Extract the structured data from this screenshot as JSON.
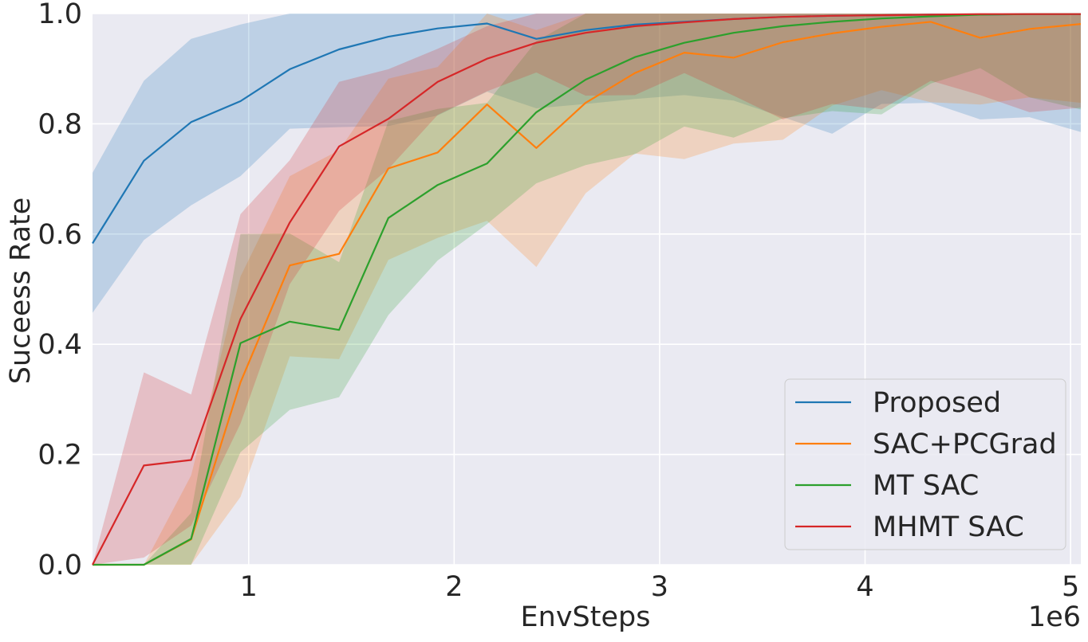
{
  "chart_data": {
    "type": "line",
    "title": "",
    "xlabel": "EnvSteps",
    "ylabel": "Suceess Rate",
    "x_offset_label": "1e6",
    "xlim": [
      0.24,
      5.05
    ],
    "ylim": [
      0.0,
      1.0
    ],
    "x_ticks": [
      1,
      2,
      3,
      4,
      5
    ],
    "y_ticks": [
      0.0,
      0.2,
      0.4,
      0.6,
      0.8,
      1.0
    ],
    "x_tick_labels": [
      "1",
      "2",
      "3",
      "4",
      "5"
    ],
    "y_tick_labels": [
      "0.0",
      "0.2",
      "0.4",
      "0.6",
      "0.8",
      "1.0"
    ],
    "grid": true,
    "legend_position": "bottom-right",
    "background_color": "#EAEAF2",
    "x": [
      0.24,
      0.49,
      0.72,
      0.96,
      1.2,
      1.44,
      1.68,
      1.92,
      2.16,
      2.4,
      2.64,
      2.88,
      3.12,
      3.36,
      3.6,
      3.84,
      4.08,
      4.32,
      4.56,
      4.8,
      5.05
    ],
    "series": [
      {
        "name": "Proposed",
        "color": "#1F77B4",
        "values": [
          0.583,
          0.733,
          0.803,
          0.841,
          0.899,
          0.935,
          0.958,
          0.973,
          0.982,
          0.954,
          0.97,
          0.98,
          0.985,
          0.99,
          0.994,
          0.996,
          0.997,
          0.998,
          0.998,
          0.999,
          0.999
        ],
        "lower": [
          0.457,
          0.589,
          0.652,
          0.705,
          0.791,
          0.794,
          0.796,
          0.815,
          0.858,
          0.828,
          0.836,
          0.845,
          0.852,
          0.842,
          0.812,
          0.782,
          0.836,
          0.838,
          0.808,
          0.812,
          0.785
        ],
        "upper": [
          0.711,
          0.878,
          0.954,
          0.98,
          1.0,
          1.0,
          1.0,
          1.0,
          1.0,
          1.0,
          1.0,
          1.0,
          1.0,
          1.0,
          1.0,
          1.0,
          1.0,
          1.0,
          1.0,
          1.0,
          1.0
        ]
      },
      {
        "name": "SAC+PCGrad",
        "color": "#FF7F0E",
        "values": [
          0.0,
          0.0,
          0.046,
          0.331,
          0.543,
          0.564,
          0.719,
          0.748,
          0.835,
          0.756,
          0.838,
          0.892,
          0.929,
          0.92,
          0.948,
          0.964,
          0.976,
          0.985,
          0.956,
          0.972,
          0.981
        ],
        "lower": [
          0.0,
          0.0,
          0.0,
          0.123,
          0.378,
          0.373,
          0.553,
          0.593,
          0.624,
          0.54,
          0.674,
          0.746,
          0.736,
          0.764,
          0.771,
          0.833,
          0.861,
          0.839,
          0.835,
          0.848,
          0.838
        ],
        "upper": [
          0.0,
          0.0,
          0.162,
          0.523,
          0.705,
          0.752,
          0.882,
          0.903,
          1.0,
          0.97,
          1.0,
          1.0,
          1.0,
          1.0,
          1.0,
          1.0,
          1.0,
          1.0,
          1.0,
          1.0,
          1.0
        ]
      },
      {
        "name": "MT SAC",
        "color": "#2CA02C",
        "values": [
          0.0,
          0.0,
          0.047,
          0.402,
          0.441,
          0.426,
          0.629,
          0.689,
          0.728,
          0.821,
          0.88,
          0.921,
          0.947,
          0.965,
          0.977,
          0.985,
          0.991,
          0.995,
          0.998,
          0.999,
          0.999
        ],
        "lower": [
          0.0,
          0.0,
          0.0,
          0.204,
          0.281,
          0.304,
          0.453,
          0.552,
          0.618,
          0.692,
          0.725,
          0.745,
          0.795,
          0.775,
          0.81,
          0.823,
          0.817,
          0.873,
          0.901,
          0.848,
          0.826
        ],
        "upper": [
          0.0,
          0.0,
          0.094,
          0.6,
          0.601,
          0.549,
          0.805,
          0.827,
          0.838,
          0.95,
          1.0,
          1.0,
          1.0,
          1.0,
          1.0,
          1.0,
          1.0,
          1.0,
          1.0,
          1.0,
          1.0
        ]
      },
      {
        "name": "MHMT SAC",
        "color": "#D62728",
        "values": [
          0.0,
          0.18,
          0.19,
          0.446,
          0.621,
          0.759,
          0.809,
          0.876,
          0.918,
          0.947,
          0.965,
          0.977,
          0.984,
          0.99,
          0.994,
          0.996,
          0.997,
          0.998,
          0.999,
          0.999,
          0.999
        ],
        "lower": [
          0.0,
          0.013,
          0.071,
          0.256,
          0.509,
          0.642,
          0.718,
          0.816,
          0.859,
          0.893,
          0.851,
          0.852,
          0.892,
          0.851,
          0.808,
          0.836,
          0.826,
          0.878,
          0.852,
          0.821,
          0.829
        ],
        "upper": [
          0.0,
          0.349,
          0.309,
          0.636,
          0.734,
          0.876,
          0.899,
          0.936,
          0.977,
          1.0,
          1.0,
          1.0,
          1.0,
          1.0,
          1.0,
          1.0,
          1.0,
          1.0,
          1.0,
          1.0,
          1.0
        ]
      }
    ]
  }
}
